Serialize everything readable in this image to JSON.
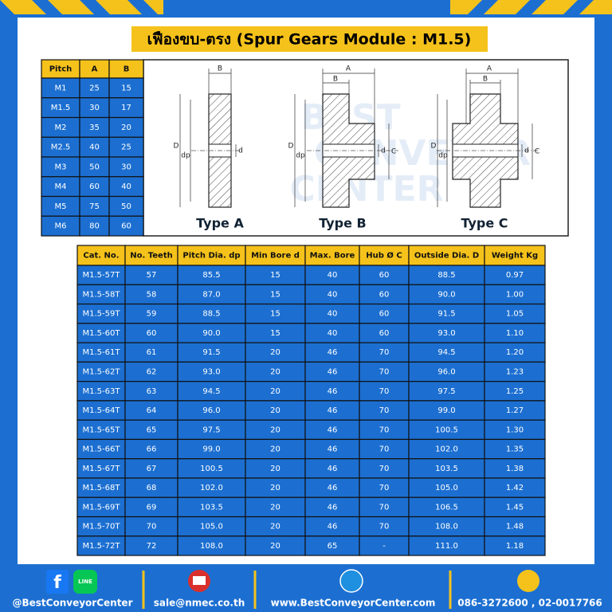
{
  "header": {
    "title": "เฟืองขบ-ตรง (Spur Gears Module : M1.5)"
  },
  "pitch_table": {
    "columns": [
      "Pitch",
      "A",
      "B"
    ],
    "rows": [
      [
        "M1",
        "25",
        "15"
      ],
      [
        "M1.5",
        "30",
        "17"
      ],
      [
        "M2",
        "35",
        "20"
      ],
      [
        "M2.5",
        "40",
        "25"
      ],
      [
        "M3",
        "50",
        "30"
      ],
      [
        "M4",
        "60",
        "40"
      ],
      [
        "M5",
        "75",
        "50"
      ],
      [
        "M6",
        "80",
        "60"
      ]
    ]
  },
  "watermark": [
    "BEST",
    "CONVEYOR",
    "CENTER"
  ],
  "diagrams": [
    {
      "label": "Type A",
      "dims": {
        "B": "B",
        "D": "D",
        "dp": "dp",
        "d": "d"
      }
    },
    {
      "label": "Type B",
      "dims": {
        "A": "A",
        "B": "B",
        "D": "D",
        "dp": "dp",
        "d": "d",
        "C": "C"
      }
    },
    {
      "label": "Type C",
      "dims": {
        "A": "A",
        "B": "B",
        "D": "D",
        "dp": "dp",
        "d": "d",
        "C": "C"
      }
    }
  ],
  "table": {
    "columns": [
      "Cat. No.",
      "No. Teeth",
      "Pitch Dia. dp",
      "Min Bore d",
      "Max. Bore",
      "Hub Ø C",
      "Outside Dia. D",
      "Weight Kg"
    ],
    "rows": [
      [
        "M1.5-57T",
        "57",
        "85.5",
        "15",
        "40",
        "60",
        "88.5",
        "0.97"
      ],
      [
        "M1.5-58T",
        "58",
        "87.0",
        "15",
        "40",
        "60",
        "90.0",
        "1.00"
      ],
      [
        "M1.5-59T",
        "59",
        "88.5",
        "15",
        "40",
        "60",
        "91.5",
        "1.05"
      ],
      [
        "M1.5-60T",
        "60",
        "90.0",
        "15",
        "40",
        "60",
        "93.0",
        "1.10"
      ],
      [
        "M1.5-61T",
        "61",
        "91.5",
        "20",
        "46",
        "70",
        "94.5",
        "1.20"
      ],
      [
        "M1.5-62T",
        "62",
        "93.0",
        "20",
        "46",
        "70",
        "96.0",
        "1.23"
      ],
      [
        "M1.5-63T",
        "63",
        "94.5",
        "20",
        "46",
        "70",
        "97.5",
        "1.25"
      ],
      [
        "M1.5-64T",
        "64",
        "96.0",
        "20",
        "46",
        "70",
        "99.0",
        "1.27"
      ],
      [
        "M1.5-65T",
        "65",
        "97.5",
        "20",
        "46",
        "70",
        "100.5",
        "1.30"
      ],
      [
        "M1.5-66T",
        "66",
        "99.0",
        "20",
        "46",
        "70",
        "102.0",
        "1.35"
      ],
      [
        "M1.5-67T",
        "67",
        "100.5",
        "20",
        "46",
        "70",
        "103.5",
        "1.38"
      ],
      [
        "M1.5-68T",
        "68",
        "102.0",
        "20",
        "46",
        "70",
        "105.0",
        "1.42"
      ],
      [
        "M1.5-69T",
        "69",
        "103.5",
        "20",
        "46",
        "70",
        "106.5",
        "1.45"
      ],
      [
        "M1.5-70T",
        "70",
        "105.0",
        "20",
        "46",
        "70",
        "108.0",
        "1.48"
      ],
      [
        "M1.5-72T",
        "72",
        "108.0",
        "20",
        "65",
        "-",
        "111.0",
        "1.18"
      ]
    ]
  },
  "footer": {
    "social": "@BestConveyorCenter",
    "line_icon": "LINE",
    "email": "sale@nmec.co.th",
    "website": "www.BestConveyorCenter.com",
    "phone": "086-3272600 , 02-0017766"
  }
}
